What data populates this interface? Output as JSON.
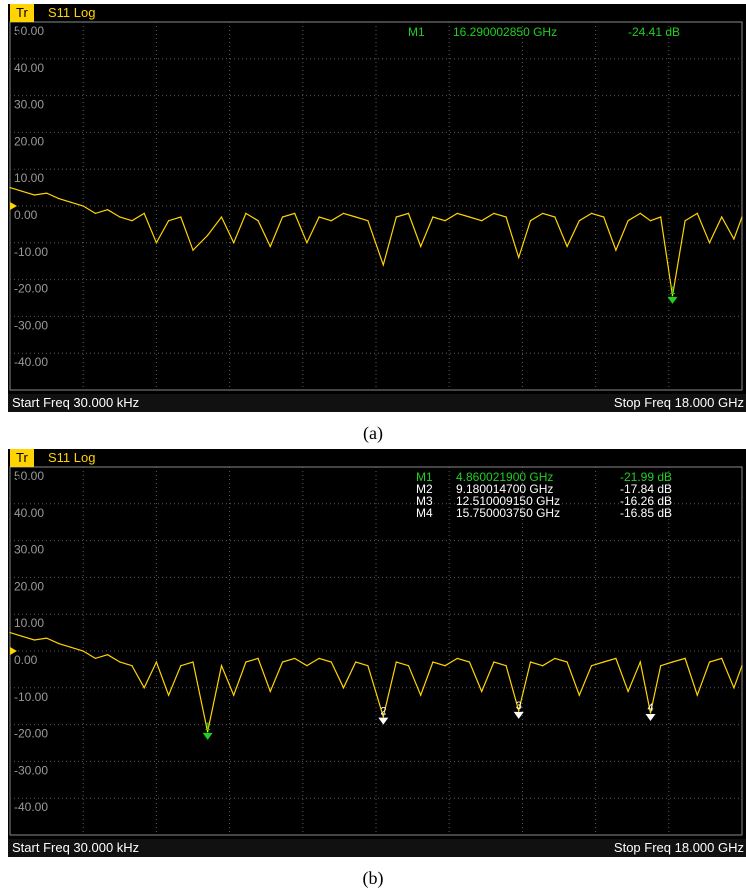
{
  "panels": [
    {
      "id": "a",
      "trace_tab": "Tr 1",
      "trace_title": "S11 Log",
      "start_freq": "Start Freq  30.000 kHz",
      "stop_freq": "Stop Freq  18.000 GHz",
      "caption": "(a)",
      "markers": [
        {
          "label": "M1",
          "freq": "16.290002850 GHz",
          "value": "-24.41 dB",
          "num": "1",
          "x_ghz": 16.29,
          "y_db": -24.41,
          "active": true
        }
      ]
    },
    {
      "id": "b",
      "trace_tab": "Tr 1",
      "trace_title": "S11 Log",
      "start_freq": "Start Freq  30.000 kHz",
      "stop_freq": "Stop Freq  18.000 GHz",
      "caption": "(b)",
      "markers": [
        {
          "label": "M1",
          "freq": "4.860021900 GHz",
          "value": "-21.99 dB",
          "num": "1",
          "x_ghz": 4.86,
          "y_db": -21.99,
          "active": true
        },
        {
          "label": "M2",
          "freq": "9.180014700 GHz",
          "value": "-17.84 dB",
          "num": "2",
          "x_ghz": 9.18,
          "y_db": -17.84,
          "active": false
        },
        {
          "label": "M3",
          "freq": "12.510009150 GHz",
          "value": "-16.26 dB",
          "num": "3",
          "x_ghz": 12.51,
          "y_db": -16.26,
          "active": false
        },
        {
          "label": "M4",
          "freq": "15.750003750 GHz",
          "value": "-16.85 dB",
          "num": "4",
          "x_ghz": 15.75,
          "y_db": -16.85,
          "active": false
        }
      ]
    }
  ],
  "chart_data": [
    {
      "type": "line",
      "xlim": [
        0,
        18
      ],
      "ylim": [
        -50,
        50
      ],
      "ytick_labels": [
        "50.00",
        "40.00",
        "30.00",
        "20.00",
        "10.00",
        "0.00",
        "-10.00",
        "-20.00",
        "-30.00",
        "-40.00"
      ],
      "grid": true,
      "series": [
        {
          "x": [
            0,
            0.3,
            0.6,
            0.9,
            1.2,
            1.5,
            1.8,
            2.1,
            2.4,
            2.7,
            3.0,
            3.3,
            3.6,
            3.9,
            4.2,
            4.5,
            4.86,
            5.2,
            5.5,
            5.8,
            6.1,
            6.4,
            6.7,
            7.0,
            7.3,
            7.6,
            7.9,
            8.2,
            8.5,
            8.8,
            9.18,
            9.5,
            9.8,
            10.1,
            10.4,
            10.7,
            11.0,
            11.3,
            11.6,
            11.9,
            12.2,
            12.51,
            12.8,
            13.1,
            13.4,
            13.7,
            14.0,
            14.3,
            14.6,
            14.9,
            15.2,
            15.5,
            15.75,
            16.0,
            16.29,
            16.6,
            16.9,
            17.2,
            17.5,
            17.8,
            18.0
          ],
          "y": [
            5,
            4,
            3,
            3.5,
            2,
            1,
            0,
            -2,
            -1,
            -3,
            -4,
            -2,
            -10,
            -4,
            -3,
            -12,
            -8,
            -3,
            -10,
            -2,
            -4,
            -11,
            -3,
            -2,
            -10,
            -3,
            -4,
            -2,
            -3,
            -4,
            -16,
            -3,
            -2,
            -11,
            -3,
            -4,
            -2,
            -3,
            -4,
            -2,
            -3,
            -14,
            -4,
            -2,
            -3,
            -11,
            -4,
            -2,
            -3,
            -12,
            -4,
            -2,
            -4,
            -3,
            -24.41,
            -4,
            -2,
            -10,
            -3,
            -9,
            -3
          ]
        }
      ]
    },
    {
      "type": "line",
      "xlim": [
        0,
        18
      ],
      "ylim": [
        -50,
        50
      ],
      "ytick_labels": [
        "50.00",
        "40.00",
        "30.00",
        "20.00",
        "10.00",
        "0.00",
        "-10.00",
        "-20.00",
        "-30.00",
        "-40.00"
      ],
      "grid": true,
      "series": [
        {
          "x": [
            0,
            0.3,
            0.6,
            0.9,
            1.2,
            1.5,
            1.8,
            2.1,
            2.4,
            2.7,
            3.0,
            3.3,
            3.6,
            3.9,
            4.2,
            4.5,
            4.86,
            5.2,
            5.5,
            5.8,
            6.1,
            6.4,
            6.7,
            7.0,
            7.3,
            7.6,
            7.9,
            8.2,
            8.5,
            8.8,
            9.18,
            9.5,
            9.8,
            10.1,
            10.4,
            10.7,
            11.0,
            11.3,
            11.6,
            11.9,
            12.2,
            12.51,
            12.8,
            13.1,
            13.4,
            13.7,
            14.0,
            14.3,
            14.6,
            14.9,
            15.2,
            15.5,
            15.75,
            16.0,
            16.29,
            16.6,
            16.9,
            17.2,
            17.5,
            17.8,
            18.0
          ],
          "y": [
            5,
            4,
            3,
            3.5,
            2,
            1,
            0,
            -2,
            -1,
            -3,
            -4,
            -10,
            -3,
            -12,
            -4,
            -3,
            -21.99,
            -4,
            -12,
            -3,
            -2,
            -11,
            -3,
            -2,
            -4,
            -2,
            -3,
            -10,
            -3,
            -4,
            -17.84,
            -3,
            -4,
            -12,
            -3,
            -4,
            -2,
            -3,
            -11,
            -3,
            -4,
            -16.26,
            -3,
            -4,
            -2,
            -3,
            -12,
            -4,
            -3,
            -2,
            -11,
            -3,
            -16.85,
            -4,
            -3,
            -2,
            -12,
            -3,
            -2,
            -10,
            -4
          ]
        }
      ]
    }
  ],
  "colors": {
    "trace": "#ffd400",
    "active_marker": "#1fd11f",
    "inactive_marker": "#ffffff",
    "background": "#000000",
    "grid": "#5a5a5a",
    "reference_arrow": "#ffd400"
  }
}
